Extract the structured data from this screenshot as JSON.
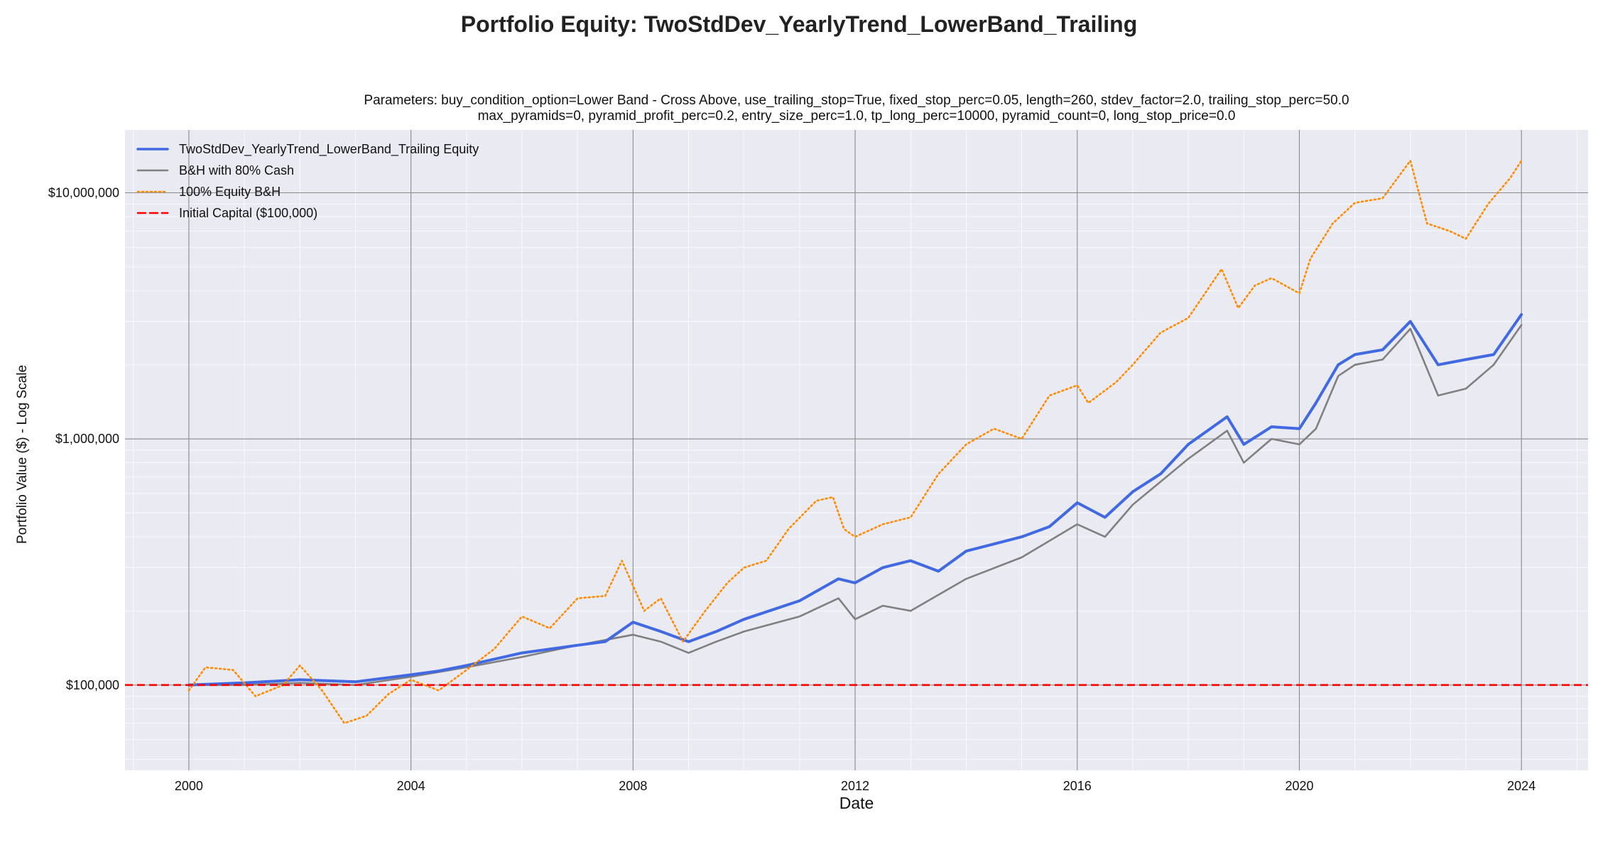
{
  "chart_data": {
    "type": "line",
    "title": "Portfolio Equity: TwoStdDev_YearlyTrend_LowerBand_Trailing",
    "subtitle_lines": [
      "Parameters: buy_condition_option=Lower Band - Cross Above, use_trailing_stop=True, fixed_stop_perc=0.05, length=260, stdev_factor=2.0, trailing_stop_perc=50.0",
      "max_pyramids=0, pyramid_profit_perc=0.2, entry_size_perc=1.0, tp_long_perc=10000, pyramid_count=0, long_stop_price=0.0"
    ],
    "xlabel": "Date",
    "ylabel": "Portfolio Value ($) - Log Scale",
    "y_scale": "log",
    "xlim": [
      1998.85,
      2025.2
    ],
    "ylim": [
      45000,
      18000000
    ],
    "x_ticks": [
      2000,
      2004,
      2008,
      2012,
      2016,
      2020,
      2024
    ],
    "x_tick_labels": [
      "2000",
      "2004",
      "2008",
      "2012",
      "2016",
      "2020",
      "2024"
    ],
    "y_ticks": [
      100000,
      1000000,
      10000000
    ],
    "y_tick_labels": [
      "$100,000",
      "$1,000,000",
      "$10,000,000"
    ],
    "grid": true,
    "legend_position": "top-left",
    "reference_line": {
      "name": "Initial Capital ($100,000)",
      "value": 100000,
      "color": "#ff0000",
      "style": "dashed"
    },
    "series": [
      {
        "name": "TwoStdDev_YearlyTrend_LowerBand_Trailing Equity",
        "color": "#4169e1",
        "style": "solid",
        "x": [
          2000.0,
          2001.0,
          2002.0,
          2003.0,
          2004.0,
          2004.5,
          2005.0,
          2006.0,
          2007.0,
          2007.5,
          2008.0,
          2008.5,
          2009.0,
          2009.5,
          2010.0,
          2011.0,
          2011.7,
          2012.0,
          2012.5,
          2013.0,
          2013.5,
          2014.0,
          2015.0,
          2015.5,
          2016.0,
          2016.5,
          2017.0,
          2017.5,
          2018.0,
          2018.7,
          2019.0,
          2019.5,
          2020.0,
          2020.3,
          2020.7,
          2021.0,
          2021.5,
          2022.0,
          2022.5,
          2023.0,
          2023.5,
          2024.0
        ],
        "y": [
          100000,
          102000,
          105000,
          103000,
          110000,
          114000,
          120000,
          135000,
          145000,
          150000,
          180000,
          165000,
          150000,
          165000,
          185000,
          220000,
          270000,
          260000,
          300000,
          320000,
          290000,
          350000,
          400000,
          440000,
          550000,
          480000,
          610000,
          720000,
          950000,
          1230000,
          950000,
          1120000,
          1100000,
          1400000,
          2000000,
          2200000,
          2300000,
          3000000,
          2000000,
          2100000,
          2200000,
          3200000
        ]
      },
      {
        "name": "B&H with 80% Cash",
        "color": "#808080",
        "style": "solid",
        "x": [
          2000.0,
          2001.0,
          2002.0,
          2003.0,
          2004.0,
          2005.0,
          2006.0,
          2007.0,
          2008.0,
          2008.5,
          2009.0,
          2009.5,
          2010.0,
          2011.0,
          2011.7,
          2012.0,
          2012.5,
          2013.0,
          2014.0,
          2015.0,
          2016.0,
          2016.5,
          2017.0,
          2018.0,
          2018.7,
          2019.0,
          2019.5,
          2020.0,
          2020.3,
          2020.7,
          2021.0,
          2021.5,
          2022.0,
          2022.5,
          2023.0,
          2023.5,
          2024.0
        ],
        "y": [
          100000,
          100000,
          102000,
          100000,
          108000,
          118000,
          130000,
          145000,
          160000,
          150000,
          135000,
          150000,
          165000,
          190000,
          225000,
          185000,
          210000,
          200000,
          270000,
          330000,
          450000,
          400000,
          540000,
          830000,
          1080000,
          800000,
          1000000,
          950000,
          1100000,
          1800000,
          2000000,
          2100000,
          2800000,
          1500000,
          1600000,
          2000000,
          2900000
        ]
      },
      {
        "name": "100% Equity B&H",
        "color": "#ff8c00",
        "style": "dotted",
        "x": [
          2000.0,
          2000.3,
          2000.8,
          2001.2,
          2001.7,
          2002.0,
          2002.4,
          2002.8,
          2003.2,
          2003.6,
          2004.0,
          2004.5,
          2005.0,
          2005.5,
          2006.0,
          2006.5,
          2007.0,
          2007.5,
          2007.8,
          2008.2,
          2008.5,
          2008.9,
          2009.3,
          2009.7,
          2010.0,
          2010.4,
          2010.8,
          2011.3,
          2011.6,
          2011.8,
          2012.0,
          2012.5,
          2013.0,
          2013.5,
          2014.0,
          2014.5,
          2015.0,
          2015.5,
          2016.0,
          2016.2,
          2016.7,
          2017.0,
          2017.5,
          2018.0,
          2018.6,
          2018.9,
          2019.2,
          2019.5,
          2020.0,
          2020.2,
          2020.6,
          2021.0,
          2021.5,
          2022.0,
          2022.3,
          2022.7,
          2023.0,
          2023.4,
          2023.8,
          2024.0
        ],
        "y": [
          95000,
          118000,
          115000,
          90000,
          100000,
          120000,
          95000,
          70000,
          75000,
          92000,
          105000,
          95000,
          115000,
          140000,
          190000,
          170000,
          225000,
          230000,
          320000,
          200000,
          225000,
          150000,
          200000,
          260000,
          300000,
          320000,
          430000,
          560000,
          580000,
          430000,
          400000,
          450000,
          480000,
          720000,
          950000,
          1100000,
          1000000,
          1500000,
          1650000,
          1400000,
          1700000,
          2000000,
          2700000,
          3100000,
          4900000,
          3400000,
          4200000,
          4500000,
          3900000,
          5400000,
          7500000,
          9100000,
          9500000,
          13500000,
          7500000,
          7000000,
          6500000,
          9000000,
          11500000,
          13500000
        ]
      }
    ]
  }
}
